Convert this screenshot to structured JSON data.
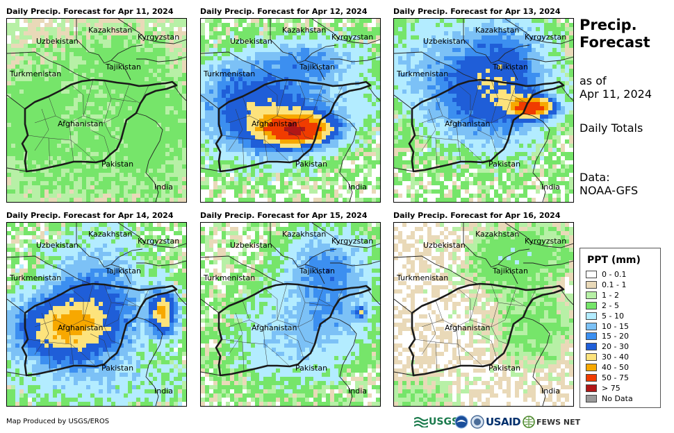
{
  "panels": [
    {
      "title": "Daily Precip. Forecast for Apr 11, 2024",
      "pattern": "p1"
    },
    {
      "title": "Daily Precip. Forecast for Apr 12, 2024",
      "pattern": "p2"
    },
    {
      "title": "Daily Precip. Forecast for Apr 13, 2024",
      "pattern": "p3"
    },
    {
      "title": "Daily Precip. Forecast for Apr 14, 2024",
      "pattern": "p4"
    },
    {
      "title": "Daily Precip. Forecast for Apr 15, 2024",
      "pattern": "p5"
    },
    {
      "title": "Daily Precip. Forecast for Apr 16, 2024",
      "pattern": "p6"
    }
  ],
  "map_labels": {
    "kazakhstan": "Kazakhstan",
    "uzbekistan": "Uzbekistan",
    "kyrgyzstan": "Kyrgyzstan",
    "tajikistan": "Tajikistan",
    "turkmenistan": "Turkmenistan",
    "afghanistan": "Afghanistan",
    "pakistan": "Pakistan",
    "india": "India"
  },
  "side": {
    "title_line1": "Precip.",
    "title_line2": "Forecast",
    "as_of_line1": "as of",
    "as_of_line2": "Apr 11, 2024",
    "totals": "Daily Totals",
    "data_line1": "Data:",
    "data_line2": "NOAA-GFS"
  },
  "legend": {
    "title": "PPT (mm)",
    "items": [
      {
        "label": "0 - 0.1",
        "color": "#ffffff"
      },
      {
        "label": "0.1 - 1",
        "color": "#e9d9b8"
      },
      {
        "label": "1 - 2",
        "color": "#b7f0a6"
      },
      {
        "label": "2 - 5",
        "color": "#76e56a"
      },
      {
        "label": "5 - 10",
        "color": "#b3ecff"
      },
      {
        "label": "10 - 15",
        "color": "#7cc1f6"
      },
      {
        "label": "15 - 20",
        "color": "#3c8ff0"
      },
      {
        "label": "20 - 30",
        "color": "#1f5ed8"
      },
      {
        "label": "30 - 40",
        "color": "#fde37c"
      },
      {
        "label": "40 - 50",
        "color": "#f7a800"
      },
      {
        "label": "50 - 75",
        "color": "#f03c00"
      },
      {
        "label": "> 75",
        "color": "#b01717"
      },
      {
        "label": "No Data",
        "color": "#999999"
      }
    ]
  },
  "credit": "Map Produced by USGS/EROS",
  "logos": {
    "usgs": "USGS",
    "usaid": "USAID",
    "fewsnet": "FEWS NET"
  }
}
